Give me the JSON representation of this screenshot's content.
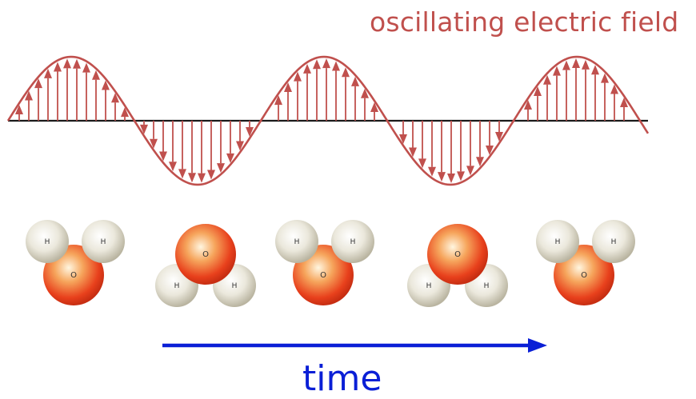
{
  "title": "oscillating electric field",
  "time_label": "time",
  "colors": {
    "field": "#c0504d",
    "axis": "#1a1a1a",
    "time_arrow": "#0a1fd6",
    "title_text": "#c0504d",
    "oxygen": "#e8401c",
    "hydrogen": "#dcd8c8"
  },
  "molecules": [
    {
      "orientation": "hydrogens-up",
      "oxygen_label": "O",
      "hydrogen_labels": [
        "H",
        "H"
      ]
    },
    {
      "orientation": "hydrogens-down",
      "oxygen_label": "O",
      "hydrogen_labels": [
        "H",
        "H"
      ]
    },
    {
      "orientation": "hydrogens-up",
      "oxygen_label": "O",
      "hydrogen_labels": [
        "H",
        "H"
      ]
    },
    {
      "orientation": "hydrogens-down",
      "oxygen_label": "O",
      "hydrogen_labels": [
        "H",
        "H"
      ]
    },
    {
      "orientation": "hydrogens-up",
      "oxygen_label": "O",
      "hydrogen_labels": [
        "H",
        "H"
      ]
    }
  ]
}
